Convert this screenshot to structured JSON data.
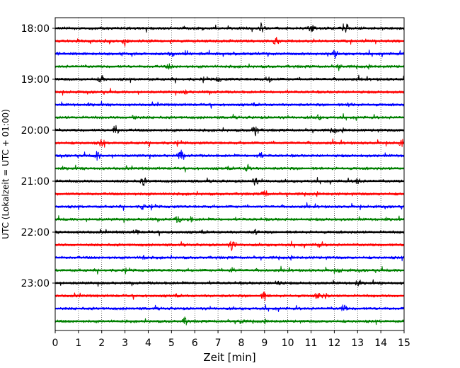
{
  "chart_data": {
    "type": "line",
    "title": "",
    "xlabel": "Zeit  [min]",
    "ylabel": "UTC (Lokalzeit = UTC + 01:00)",
    "xlim": [
      0,
      15
    ],
    "x_ticks": [
      "0",
      "1",
      "2",
      "3",
      "4",
      "5",
      "6",
      "7",
      "8",
      "9",
      "10",
      "11",
      "12",
      "13",
      "14",
      "15"
    ],
    "y_ticks": [
      "18:00",
      "19:00",
      "20:00",
      "21:00",
      "22:00",
      "23:00"
    ],
    "grid": "vertical dotted",
    "trace_colors": [
      "#000000",
      "#ff0000",
      "#0000ff",
      "#008000"
    ],
    "traces": [
      {
        "start": "18:00",
        "color": "#000000",
        "events": [
          [
            8.9,
            5
          ],
          [
            11.0,
            5
          ],
          [
            12.5,
            7
          ]
        ]
      },
      {
        "start": "18:15",
        "color": "#ff0000",
        "events": [
          [
            3.0,
            6
          ],
          [
            9.5,
            4
          ]
        ]
      },
      {
        "start": "18:30",
        "color": "#0000ff",
        "events": [
          [
            5.0,
            3
          ],
          [
            12.0,
            3
          ]
        ]
      },
      {
        "start": "18:45",
        "color": "#008000",
        "events": [
          [
            4.9,
            3
          ],
          [
            12.2,
            3
          ]
        ]
      },
      {
        "start": "19:00",
        "color": "#000000",
        "events": [
          [
            2.0,
            5
          ],
          [
            7.0,
            3
          ],
          [
            9.2,
            3
          ]
        ]
      },
      {
        "start": "19:15",
        "color": "#ff0000",
        "events": [
          [
            5.6,
            3
          ]
        ]
      },
      {
        "start": "19:30",
        "color": "#0000ff",
        "events": [
          [
            12.7,
            3
          ]
        ]
      },
      {
        "start": "19:45",
        "color": "#008000",
        "events": [
          [
            3.4,
            4
          ],
          [
            11.3,
            3
          ]
        ]
      },
      {
        "start": "20:00",
        "color": "#000000",
        "events": [
          [
            2.6,
            7
          ],
          [
            8.6,
            9
          ],
          [
            12.0,
            3
          ]
        ]
      },
      {
        "start": "20:15",
        "color": "#ff0000",
        "events": [
          [
            2.0,
            5
          ],
          [
            14.9,
            4
          ]
        ]
      },
      {
        "start": "20:30",
        "color": "#0000ff",
        "events": [
          [
            1.8,
            6
          ],
          [
            5.4,
            7
          ],
          [
            8.8,
            4
          ]
        ]
      },
      {
        "start": "20:45",
        "color": "#008000",
        "events": [
          [
            8.3,
            6
          ]
        ]
      },
      {
        "start": "21:00",
        "color": "#000000",
        "events": [
          [
            3.8,
            5
          ],
          [
            8.6,
            5
          ],
          [
            13.0,
            4
          ]
        ]
      },
      {
        "start": "21:15",
        "color": "#ff0000",
        "events": [
          [
            9.0,
            5
          ]
        ]
      },
      {
        "start": "21:30",
        "color": "#0000ff",
        "events": [
          [
            3.8,
            4
          ]
        ]
      },
      {
        "start": "21:45",
        "color": "#008000",
        "events": [
          [
            5.3,
            5
          ],
          [
            5.8,
            3
          ]
        ]
      },
      {
        "start": "22:00",
        "color": "#000000",
        "events": [
          [
            3.5,
            3
          ],
          [
            8.6,
            3
          ]
        ]
      },
      {
        "start": "22:15",
        "color": "#ff0000",
        "events": [
          [
            7.6,
            7
          ],
          [
            11.3,
            3
          ]
        ]
      },
      {
        "start": "22:30",
        "color": "#0000ff",
        "events": [
          [
            3.8,
            3
          ]
        ]
      },
      {
        "start": "22:45",
        "color": "#008000",
        "events": [
          [
            7.6,
            3
          ],
          [
            12.2,
            3
          ]
        ]
      },
      {
        "start": "23:00",
        "color": "#000000",
        "events": [
          [
            9.6,
            4
          ],
          [
            13.0,
            3
          ]
        ]
      },
      {
        "start": "23:15",
        "color": "#ff0000",
        "events": [
          [
            9.0,
            6
          ],
          [
            11.3,
            4
          ],
          [
            11.6,
            4
          ]
        ]
      },
      {
        "start": "23:30",
        "color": "#0000ff",
        "events": [
          [
            12.4,
            5
          ]
        ]
      },
      {
        "start": "23:45",
        "color": "#008000",
        "events": [
          [
            5.6,
            5
          ],
          [
            8.0,
            3
          ]
        ]
      }
    ]
  }
}
